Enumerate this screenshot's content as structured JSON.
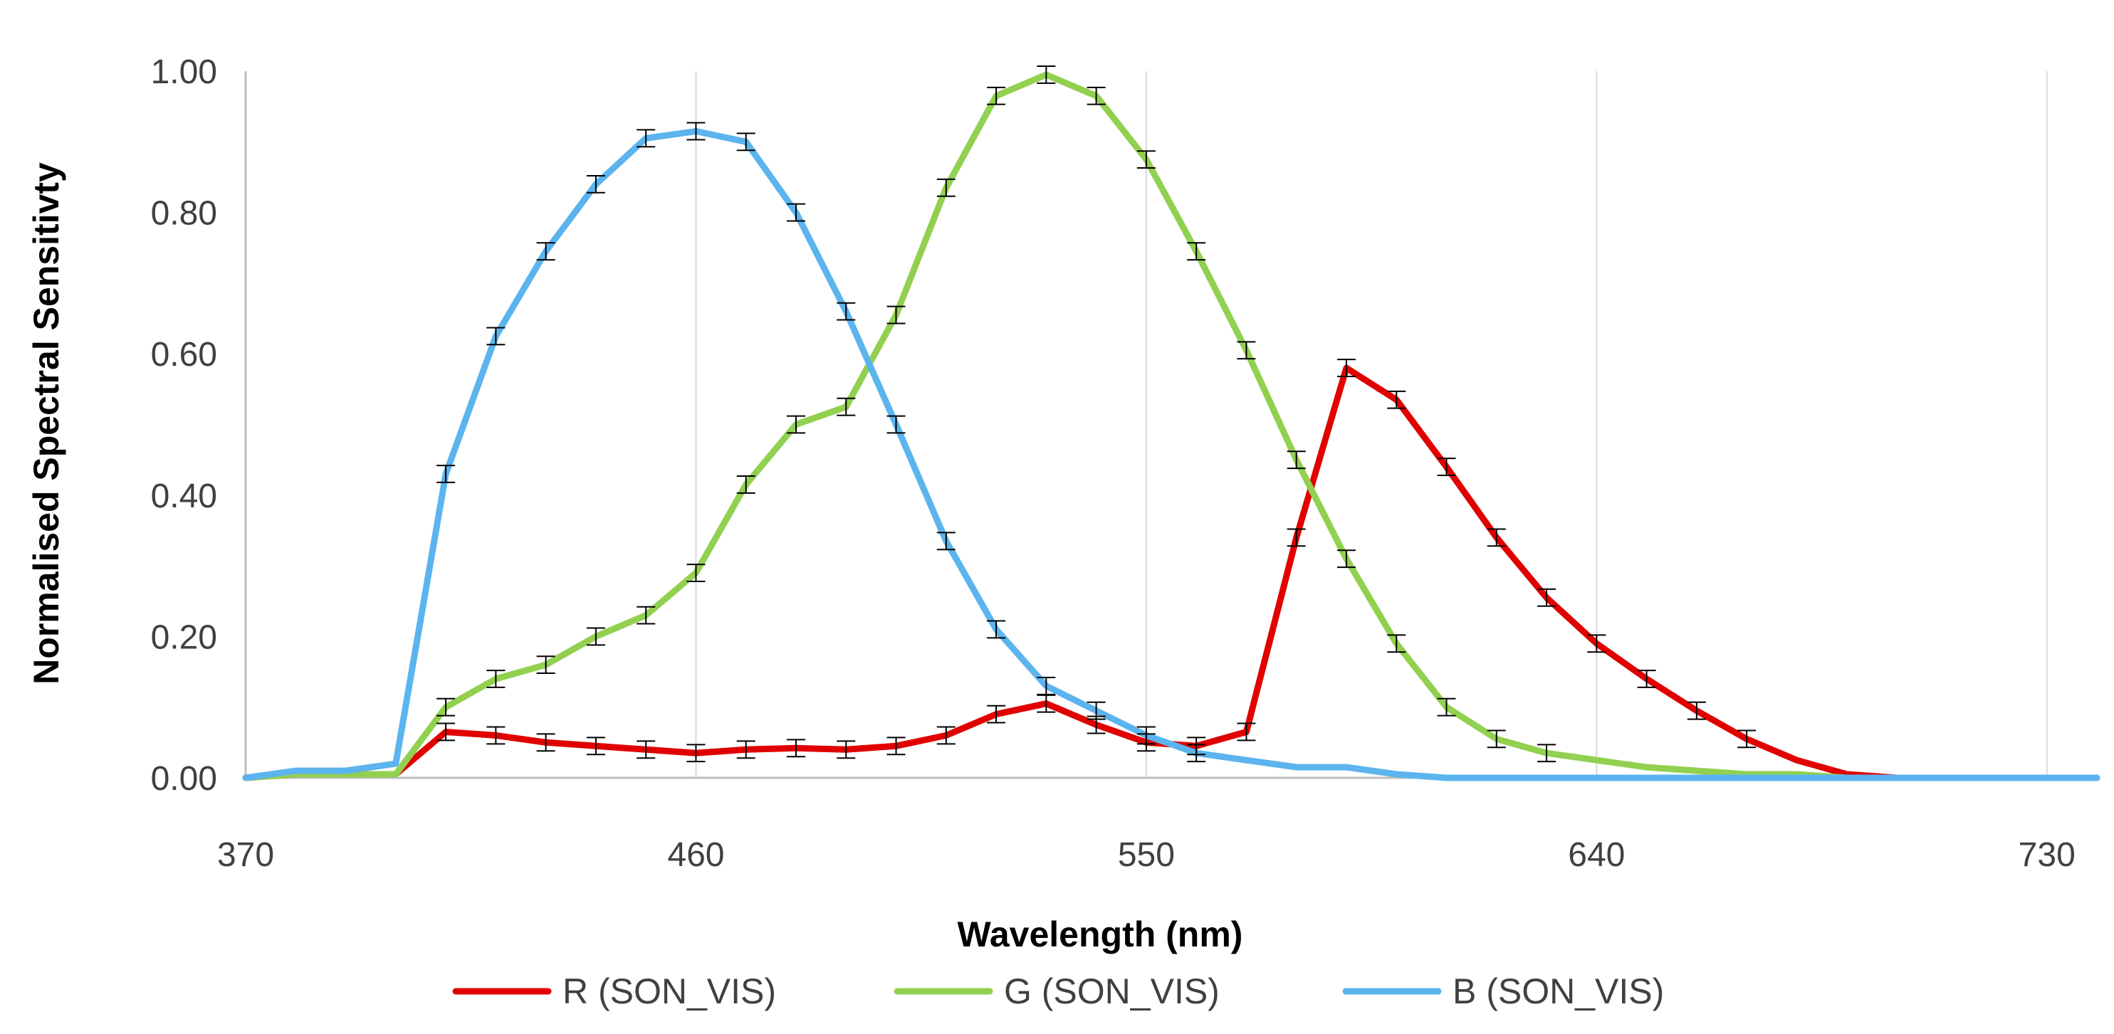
{
  "chart_data": {
    "type": "line",
    "title": "",
    "xlabel": "Wavelength (nm)",
    "ylabel": "Normalised Spectral Sensitivty",
    "xlim": [
      370,
      740
    ],
    "ylim": [
      0,
      1
    ],
    "xticks": [
      370,
      460,
      550,
      640,
      730
    ],
    "xtick_labels": [
      "370",
      "460",
      "550",
      "640",
      "730"
    ],
    "yticks": [
      0,
      0.2,
      0.4,
      0.6,
      0.8,
      1.0
    ],
    "ytick_labels": [
      "0.00",
      "0.20",
      "0.40",
      "0.60",
      "0.80",
      "1.00"
    ],
    "grid": "vertical",
    "legend_position": "bottom",
    "x": [
      370,
      380,
      390,
      400,
      410,
      420,
      430,
      440,
      450,
      460,
      470,
      480,
      490,
      500,
      510,
      520,
      530,
      540,
      550,
      560,
      570,
      580,
      590,
      600,
      610,
      620,
      630,
      640,
      650,
      660,
      670,
      680,
      690,
      700,
      710,
      720,
      730,
      740
    ],
    "series": [
      {
        "name": "R (SON_VIS)",
        "color": "#e00000",
        "values": [
          0.0,
          0.005,
          0.005,
          0.005,
          0.065,
          0.06,
          0.05,
          0.045,
          0.04,
          0.035,
          0.04,
          0.042,
          0.04,
          0.045,
          0.06,
          0.09,
          0.105,
          0.075,
          0.05,
          0.045,
          0.065,
          0.34,
          0.58,
          0.535,
          0.44,
          0.34,
          0.255,
          0.19,
          0.14,
          0.095,
          0.055,
          0.025,
          0.005,
          0.0,
          0.0,
          0.0,
          0.0,
          0.0
        ]
      },
      {
        "name": "G (SON_VIS)",
        "color": "#92d050",
        "values": [
          0.0,
          0.005,
          0.005,
          0.005,
          0.1,
          0.14,
          0.16,
          0.2,
          0.23,
          0.29,
          0.415,
          0.5,
          0.525,
          0.655,
          0.835,
          0.965,
          0.995,
          0.965,
          0.875,
          0.745,
          0.605,
          0.45,
          0.31,
          0.19,
          0.1,
          0.055,
          0.035,
          0.025,
          0.015,
          0.01,
          0.005,
          0.005,
          0.0,
          0.0,
          0.0,
          0.0,
          0.0,
          0.0
        ]
      },
      {
        "name": "B (SON_VIS)",
        "color": "#5bb4ee",
        "values": [
          0.0,
          0.01,
          0.01,
          0.02,
          0.43,
          0.625,
          0.745,
          0.84,
          0.905,
          0.915,
          0.9,
          0.8,
          0.66,
          0.5,
          0.335,
          0.21,
          0.13,
          0.095,
          0.06,
          0.035,
          0.025,
          0.015,
          0.015,
          0.005,
          0.0,
          0.0,
          0.0,
          0.0,
          0.0,
          0.0,
          0.0,
          0.0,
          0.0,
          0.0,
          0.0,
          0.0,
          0.0,
          0.0
        ]
      }
    ],
    "error_bar_halfwidth": 0.012
  }
}
